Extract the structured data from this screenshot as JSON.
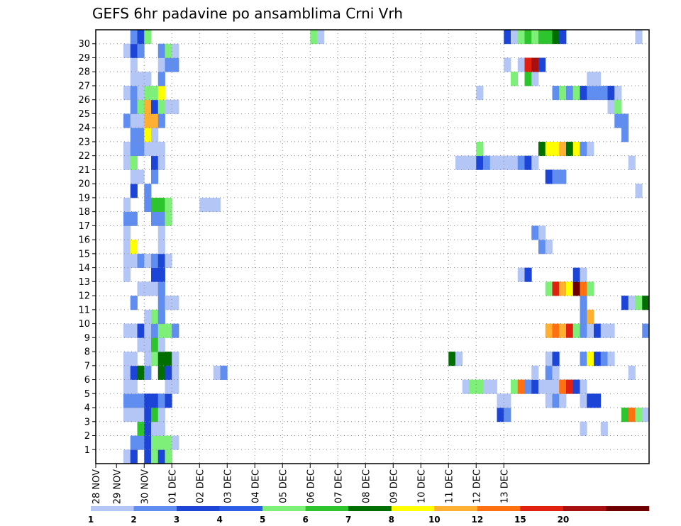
{
  "chart_data": {
    "type": "heatmap",
    "title": "GEFS 6hr padavine po ansamblima Crni Vrh",
    "xlabel": "",
    "ylabel": "",
    "x_ticks": [
      "28 NOV",
      "29 NOV",
      "30 NOV",
      "01 DEC",
      "02 DEC",
      "03 DEC",
      "04 DEC",
      "05 DEC",
      "06 DEC",
      "07 DEC",
      "08 DEC",
      "09 DEC",
      "10 DEC",
      "11 DEC",
      "12 DEC",
      "13 DEC"
    ],
    "y_ticks": [
      "1",
      "2",
      "3",
      "4",
      "5",
      "6",
      "7",
      "8",
      "9",
      "10",
      "11",
      "12",
      "13",
      "14",
      "15",
      "16",
      "17",
      "18",
      "19",
      "20",
      "21",
      "22",
      "23",
      "24",
      "25",
      "26",
      "27",
      "28",
      "29",
      "30"
    ],
    "grid": true,
    "x_unit": "6-hour step (4 per day)",
    "colorbar": {
      "labels": [
        "1",
        "2",
        "3",
        "4",
        "5",
        "6",
        "7",
        "8",
        "10",
        "12",
        "15",
        "20"
      ],
      "colors": [
        "#b4c6f5",
        "#5f8df0",
        "#1c45d8",
        "#2f5ce6",
        "#7ef07a",
        "#2dc42d",
        "#006e00",
        "#ffff00",
        "#ffb030",
        "#ff7010",
        "#e02010",
        "#a81010",
        "#6e0000"
      ]
    },
    "member_cells": {
      "30": [
        [
          5,
          1
        ],
        [
          6,
          2
        ],
        [
          7,
          4
        ],
        [
          31,
          4
        ],
        [
          32,
          0
        ],
        [
          59,
          2
        ],
        [
          60,
          0
        ],
        [
          61,
          4
        ],
        [
          62,
          5
        ],
        [
          63,
          4
        ],
        [
          64,
          5
        ],
        [
          65,
          5
        ],
        [
          66,
          6
        ],
        [
          67,
          2
        ],
        [
          78,
          0
        ]
      ],
      "29": [
        [
          4,
          0
        ],
        [
          5,
          2
        ],
        [
          6,
          1
        ],
        [
          9,
          1
        ],
        [
          10,
          4
        ],
        [
          11,
          0
        ]
      ],
      "28": [
        [
          5,
          0
        ],
        [
          9,
          0
        ],
        [
          10,
          1
        ],
        [
          11,
          1
        ],
        [
          59,
          0
        ],
        [
          61,
          0
        ],
        [
          62,
          10
        ],
        [
          63,
          11
        ],
        [
          64,
          2
        ]
      ],
      "27": [
        [
          5,
          0
        ],
        [
          6,
          0
        ],
        [
          7,
          0
        ],
        [
          9,
          1
        ],
        [
          60,
          4
        ],
        [
          62,
          5
        ],
        [
          63,
          0
        ],
        [
          71,
          0
        ],
        [
          72,
          0
        ]
      ],
      "26": [
        [
          4,
          0
        ],
        [
          5,
          1
        ],
        [
          6,
          0
        ],
        [
          7,
          4
        ],
        [
          8,
          4
        ],
        [
          9,
          7
        ],
        [
          55,
          0
        ],
        [
          66,
          1
        ],
        [
          67,
          4
        ],
        [
          68,
          1
        ],
        [
          69,
          4
        ],
        [
          70,
          2
        ],
        [
          71,
          1
        ],
        [
          72,
          1
        ],
        [
          73,
          1
        ],
        [
          74,
          2
        ],
        [
          75,
          0
        ]
      ],
      "25": [
        [
          5,
          1
        ],
        [
          6,
          4
        ],
        [
          7,
          8
        ],
        [
          8,
          2
        ],
        [
          9,
          4
        ],
        [
          10,
          0
        ],
        [
          11,
          0
        ],
        [
          74,
          0
        ],
        [
          75,
          4
        ]
      ],
      "24": [
        [
          4,
          1
        ],
        [
          5,
          0
        ],
        [
          6,
          0
        ],
        [
          7,
          8
        ],
        [
          8,
          8
        ],
        [
          9,
          1
        ],
        [
          75,
          1
        ],
        [
          76,
          1
        ]
      ],
      "23": [
        [
          5,
          1
        ],
        [
          6,
          1
        ],
        [
          7,
          7
        ],
        [
          8,
          0
        ],
        [
          76,
          1
        ]
      ],
      "22": [
        [
          4,
          0
        ],
        [
          5,
          1
        ],
        [
          6,
          1
        ],
        [
          7,
          0
        ],
        [
          8,
          0
        ],
        [
          9,
          0
        ],
        [
          55,
          4
        ],
        [
          64,
          6
        ],
        [
          65,
          7
        ],
        [
          66,
          7
        ],
        [
          67,
          8
        ],
        [
          68,
          6
        ],
        [
          69,
          7
        ],
        [
          70,
          1
        ],
        [
          71,
          0
        ]
      ],
      "21": [
        [
          4,
          0
        ],
        [
          5,
          4
        ],
        [
          8,
          2
        ],
        [
          9,
          0
        ],
        [
          52,
          0
        ],
        [
          53,
          0
        ],
        [
          54,
          0
        ],
        [
          55,
          2
        ],
        [
          56,
          1
        ],
        [
          57,
          0
        ],
        [
          58,
          0
        ],
        [
          59,
          0
        ],
        [
          60,
          0
        ],
        [
          61,
          1
        ],
        [
          62,
          2
        ],
        [
          63,
          0
        ],
        [
          77,
          0
        ]
      ],
      "20": [
        [
          5,
          0
        ],
        [
          6,
          0
        ],
        [
          8,
          1
        ],
        [
          65,
          2
        ],
        [
          66,
          1
        ],
        [
          67,
          1
        ]
      ],
      "19": [
        [
          5,
          2
        ],
        [
          7,
          1
        ],
        [
          78,
          0
        ]
      ],
      "18": [
        [
          4,
          0
        ],
        [
          7,
          1
        ],
        [
          8,
          5
        ],
        [
          9,
          5
        ],
        [
          10,
          4
        ],
        [
          15,
          0
        ],
        [
          16,
          0
        ],
        [
          17,
          0
        ]
      ],
      "17": [
        [
          4,
          1
        ],
        [
          5,
          1
        ],
        [
          8,
          1
        ],
        [
          9,
          1
        ],
        [
          10,
          4
        ]
      ],
      "16": [
        [
          4,
          0
        ],
        [
          9,
          0
        ],
        [
          63,
          1
        ],
        [
          64,
          0
        ]
      ],
      "15": [
        [
          4,
          0
        ],
        [
          5,
          7
        ],
        [
          9,
          0
        ],
        [
          64,
          1
        ],
        [
          65,
          0
        ]
      ],
      "14": [
        [
          4,
          0
        ],
        [
          5,
          0
        ],
        [
          6,
          1
        ],
        [
          7,
          0
        ],
        [
          8,
          1
        ],
        [
          9,
          2
        ],
        [
          10,
          0
        ]
      ],
      "13": [
        [
          4,
          0
        ],
        [
          8,
          2
        ],
        [
          9,
          2
        ],
        [
          61,
          0
        ],
        [
          62,
          2
        ],
        [
          69,
          2
        ],
        [
          70,
          0
        ]
      ],
      "12": [
        [
          6,
          0
        ],
        [
          7,
          0
        ],
        [
          8,
          0
        ],
        [
          9,
          1
        ],
        [
          65,
          4
        ],
        [
          66,
          10
        ],
        [
          67,
          8
        ],
        [
          68,
          7
        ],
        [
          69,
          12
        ],
        [
          70,
          9
        ],
        [
          71,
          4
        ]
      ],
      "11": [
        [
          5,
          1
        ],
        [
          9,
          1
        ],
        [
          10,
          0
        ],
        [
          11,
          0
        ],
        [
          70,
          1
        ],
        [
          76,
          2
        ],
        [
          77,
          0
        ],
        [
          78,
          4
        ],
        [
          79,
          6
        ]
      ],
      "10": [
        [
          7,
          0
        ],
        [
          8,
          4
        ],
        [
          9,
          1
        ],
        [
          70,
          1
        ],
        [
          71,
          8
        ]
      ],
      "9": [
        [
          4,
          0
        ],
        [
          5,
          0
        ],
        [
          6,
          2
        ],
        [
          7,
          0
        ],
        [
          8,
          1
        ],
        [
          9,
          4
        ],
        [
          10,
          4
        ],
        [
          11,
          1
        ],
        [
          65,
          8
        ],
        [
          66,
          9
        ],
        [
          67,
          8
        ],
        [
          68,
          10
        ],
        [
          69,
          4
        ],
        [
          70,
          1
        ],
        [
          71,
          0
        ],
        [
          72,
          2
        ],
        [
          73,
          0
        ],
        [
          74,
          0
        ],
        [
          79,
          1
        ]
      ],
      "8": [
        [
          6,
          0
        ],
        [
          7,
          0
        ],
        [
          8,
          5
        ],
        [
          9,
          0
        ]
      ],
      "7": [
        [
          4,
          0
        ],
        [
          5,
          0
        ],
        [
          7,
          0
        ],
        [
          8,
          4
        ],
        [
          9,
          6
        ],
        [
          10,
          6
        ],
        [
          11,
          0
        ],
        [
          51,
          6
        ],
        [
          52,
          0
        ],
        [
          65,
          0
        ],
        [
          66,
          2
        ],
        [
          70,
          1
        ],
        [
          71,
          7
        ],
        [
          72,
          2
        ],
        [
          73,
          1
        ],
        [
          74,
          0
        ]
      ],
      "6": [
        [
          4,
          0
        ],
        [
          5,
          2
        ],
        [
          6,
          6
        ],
        [
          7,
          1
        ],
        [
          9,
          6
        ],
        [
          10,
          2
        ],
        [
          11,
          0
        ],
        [
          17,
          0
        ],
        [
          18,
          1
        ],
        [
          63,
          0
        ],
        [
          65,
          1
        ],
        [
          66,
          0
        ],
        [
          77,
          0
        ]
      ],
      "5": [
        [
          4,
          0
        ],
        [
          5,
          0
        ],
        [
          10,
          0
        ],
        [
          11,
          0
        ],
        [
          53,
          0
        ],
        [
          54,
          4
        ],
        [
          55,
          4
        ],
        [
          56,
          0
        ],
        [
          57,
          0
        ],
        [
          60,
          4
        ],
        [
          61,
          9
        ],
        [
          62,
          1
        ],
        [
          63,
          2
        ],
        [
          64,
          0
        ],
        [
          65,
          0
        ],
        [
          66,
          0
        ],
        [
          67,
          9
        ],
        [
          68,
          10
        ],
        [
          69,
          2
        ],
        [
          70,
          0
        ]
      ],
      "4": [
        [
          4,
          1
        ],
        [
          5,
          1
        ],
        [
          6,
          1
        ],
        [
          7,
          2
        ],
        [
          8,
          2
        ],
        [
          9,
          1
        ],
        [
          10,
          2
        ],
        [
          58,
          0
        ],
        [
          59,
          0
        ],
        [
          65,
          0
        ],
        [
          66,
          1
        ],
        [
          67,
          0
        ],
        [
          70,
          0
        ],
        [
          71,
          2
        ],
        [
          72,
          2
        ]
      ],
      "3": [
        [
          4,
          0
        ],
        [
          5,
          0
        ],
        [
          6,
          0
        ],
        [
          7,
          2
        ],
        [
          8,
          5
        ],
        [
          9,
          0
        ],
        [
          58,
          2
        ],
        [
          59,
          1
        ],
        [
          76,
          5
        ],
        [
          77,
          9
        ],
        [
          78,
          4
        ],
        [
          79,
          0
        ]
      ],
      "2": [
        [
          6,
          5
        ],
        [
          7,
          2
        ],
        [
          8,
          0
        ],
        [
          9,
          0
        ],
        [
          70,
          0
        ],
        [
          73,
          0
        ]
      ],
      "1": [
        [
          5,
          1
        ],
        [
          6,
          1
        ],
        [
          7,
          2
        ],
        [
          8,
          4
        ],
        [
          9,
          4
        ],
        [
          10,
          4
        ],
        [
          11,
          0
        ]
      ],
      "0": [
        [
          4,
          0
        ],
        [
          5,
          2
        ],
        [
          7,
          2
        ],
        [
          8,
          4
        ],
        [
          9,
          2
        ],
        [
          10,
          4
        ]
      ]
    }
  }
}
